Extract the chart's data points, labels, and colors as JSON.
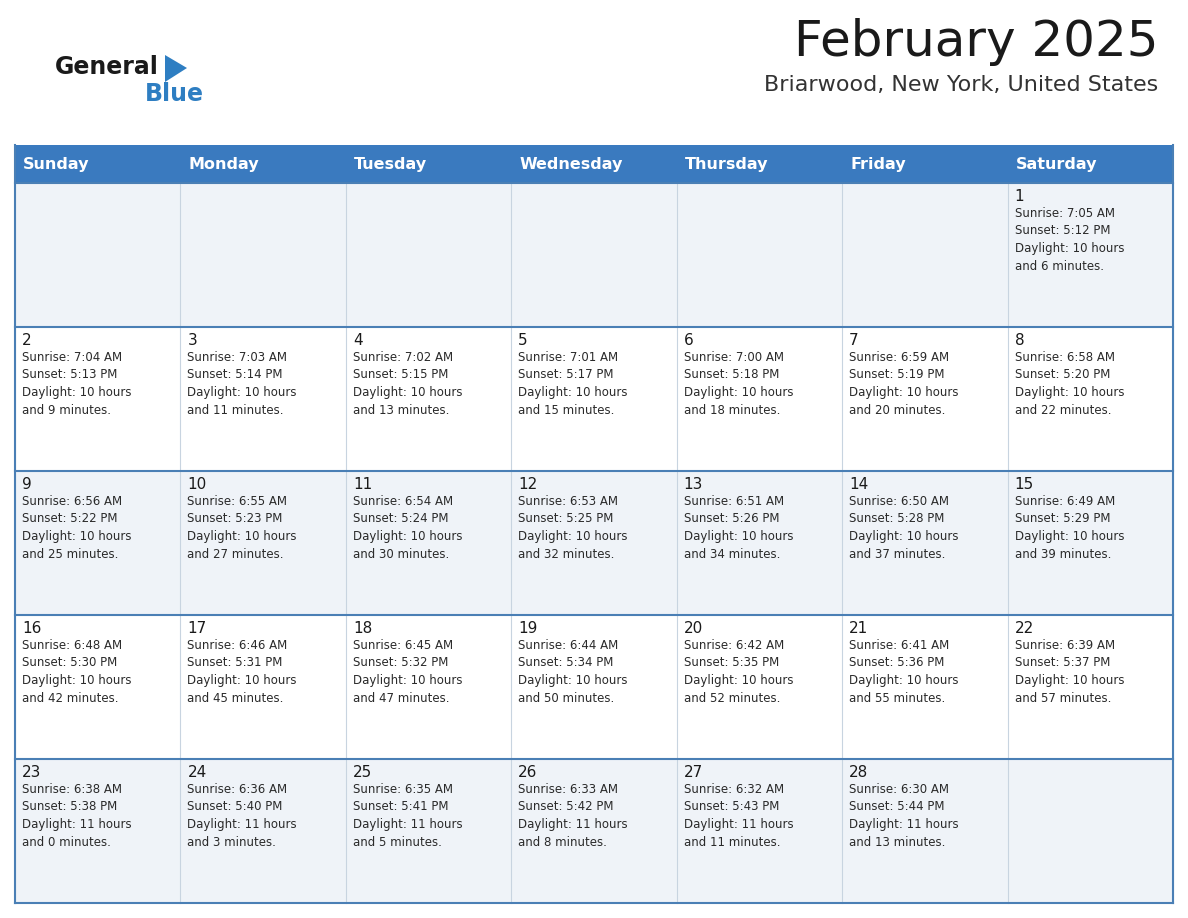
{
  "title": "February 2025",
  "subtitle": "Briarwood, New York, United States",
  "header_color": "#3a7abf",
  "header_text_color": "#ffffff",
  "cell_bg_row0": "#eff3f8",
  "cell_bg_row1": "#ffffff",
  "cell_bg_row2": "#eff3f8",
  "cell_bg_row3": "#ffffff",
  "cell_bg_row4": "#eff3f8",
  "separator_color": "#4a7fb5",
  "day_headers": [
    "Sunday",
    "Monday",
    "Tuesday",
    "Wednesday",
    "Thursday",
    "Friday",
    "Saturday"
  ],
  "weeks": [
    [
      {
        "day": "",
        "info": ""
      },
      {
        "day": "",
        "info": ""
      },
      {
        "day": "",
        "info": ""
      },
      {
        "day": "",
        "info": ""
      },
      {
        "day": "",
        "info": ""
      },
      {
        "day": "",
        "info": ""
      },
      {
        "day": "1",
        "info": "Sunrise: 7:05 AM\nSunset: 5:12 PM\nDaylight: 10 hours\nand 6 minutes."
      }
    ],
    [
      {
        "day": "2",
        "info": "Sunrise: 7:04 AM\nSunset: 5:13 PM\nDaylight: 10 hours\nand 9 minutes."
      },
      {
        "day": "3",
        "info": "Sunrise: 7:03 AM\nSunset: 5:14 PM\nDaylight: 10 hours\nand 11 minutes."
      },
      {
        "day": "4",
        "info": "Sunrise: 7:02 AM\nSunset: 5:15 PM\nDaylight: 10 hours\nand 13 minutes."
      },
      {
        "day": "5",
        "info": "Sunrise: 7:01 AM\nSunset: 5:17 PM\nDaylight: 10 hours\nand 15 minutes."
      },
      {
        "day": "6",
        "info": "Sunrise: 7:00 AM\nSunset: 5:18 PM\nDaylight: 10 hours\nand 18 minutes."
      },
      {
        "day": "7",
        "info": "Sunrise: 6:59 AM\nSunset: 5:19 PM\nDaylight: 10 hours\nand 20 minutes."
      },
      {
        "day": "8",
        "info": "Sunrise: 6:58 AM\nSunset: 5:20 PM\nDaylight: 10 hours\nand 22 minutes."
      }
    ],
    [
      {
        "day": "9",
        "info": "Sunrise: 6:56 AM\nSunset: 5:22 PM\nDaylight: 10 hours\nand 25 minutes."
      },
      {
        "day": "10",
        "info": "Sunrise: 6:55 AM\nSunset: 5:23 PM\nDaylight: 10 hours\nand 27 minutes."
      },
      {
        "day": "11",
        "info": "Sunrise: 6:54 AM\nSunset: 5:24 PM\nDaylight: 10 hours\nand 30 minutes."
      },
      {
        "day": "12",
        "info": "Sunrise: 6:53 AM\nSunset: 5:25 PM\nDaylight: 10 hours\nand 32 minutes."
      },
      {
        "day": "13",
        "info": "Sunrise: 6:51 AM\nSunset: 5:26 PM\nDaylight: 10 hours\nand 34 minutes."
      },
      {
        "day": "14",
        "info": "Sunrise: 6:50 AM\nSunset: 5:28 PM\nDaylight: 10 hours\nand 37 minutes."
      },
      {
        "day": "15",
        "info": "Sunrise: 6:49 AM\nSunset: 5:29 PM\nDaylight: 10 hours\nand 39 minutes."
      }
    ],
    [
      {
        "day": "16",
        "info": "Sunrise: 6:48 AM\nSunset: 5:30 PM\nDaylight: 10 hours\nand 42 minutes."
      },
      {
        "day": "17",
        "info": "Sunrise: 6:46 AM\nSunset: 5:31 PM\nDaylight: 10 hours\nand 45 minutes."
      },
      {
        "day": "18",
        "info": "Sunrise: 6:45 AM\nSunset: 5:32 PM\nDaylight: 10 hours\nand 47 minutes."
      },
      {
        "day": "19",
        "info": "Sunrise: 6:44 AM\nSunset: 5:34 PM\nDaylight: 10 hours\nand 50 minutes."
      },
      {
        "day": "20",
        "info": "Sunrise: 6:42 AM\nSunset: 5:35 PM\nDaylight: 10 hours\nand 52 minutes."
      },
      {
        "day": "21",
        "info": "Sunrise: 6:41 AM\nSunset: 5:36 PM\nDaylight: 10 hours\nand 55 minutes."
      },
      {
        "day": "22",
        "info": "Sunrise: 6:39 AM\nSunset: 5:37 PM\nDaylight: 10 hours\nand 57 minutes."
      }
    ],
    [
      {
        "day": "23",
        "info": "Sunrise: 6:38 AM\nSunset: 5:38 PM\nDaylight: 11 hours\nand 0 minutes."
      },
      {
        "day": "24",
        "info": "Sunrise: 6:36 AM\nSunset: 5:40 PM\nDaylight: 11 hours\nand 3 minutes."
      },
      {
        "day": "25",
        "info": "Sunrise: 6:35 AM\nSunset: 5:41 PM\nDaylight: 11 hours\nand 5 minutes."
      },
      {
        "day": "26",
        "info": "Sunrise: 6:33 AM\nSunset: 5:42 PM\nDaylight: 11 hours\nand 8 minutes."
      },
      {
        "day": "27",
        "info": "Sunrise: 6:32 AM\nSunset: 5:43 PM\nDaylight: 11 hours\nand 11 minutes."
      },
      {
        "day": "28",
        "info": "Sunrise: 6:30 AM\nSunset: 5:44 PM\nDaylight: 11 hours\nand 13 minutes."
      },
      {
        "day": "",
        "info": ""
      }
    ]
  ],
  "row_bg_colors": [
    "#eff3f8",
    "#ffffff",
    "#eff3f8",
    "#ffffff",
    "#eff3f8"
  ]
}
